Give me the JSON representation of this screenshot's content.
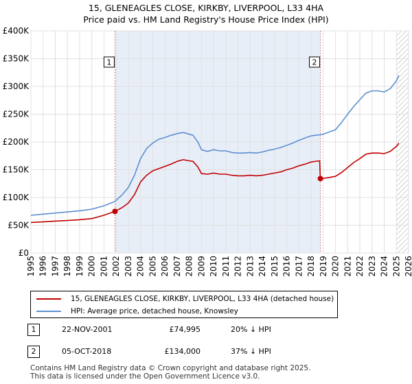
{
  "chart_data": {
    "type": "line",
    "title": "15, GLENEAGLES CLOSE, KIRKBY, LIVERPOOL, L33 4HA",
    "subtitle": "Price paid vs. HM Land Registry's House Price Index (HPI)",
    "xlabel": "",
    "ylabel": "",
    "xlim": [
      1995,
      2026
    ],
    "ylim": [
      0,
      400000
    ],
    "x_ticks": [
      "1995",
      "1996",
      "1997",
      "1998",
      "1999",
      "2000",
      "2001",
      "2002",
      "2003",
      "2004",
      "2005",
      "2006",
      "2007",
      "2008",
      "2009",
      "2010",
      "2011",
      "2012",
      "2013",
      "2014",
      "2015",
      "2016",
      "2017",
      "2018",
      "2019",
      "2020",
      "2021",
      "2022",
      "2023",
      "2024",
      "2025",
      "2026"
    ],
    "y_ticks": [
      {
        "value": 0,
        "label": "£0"
      },
      {
        "value": 50000,
        "label": "£50K"
      },
      {
        "value": 100000,
        "label": "£100K"
      },
      {
        "value": 150000,
        "label": "£150K"
      },
      {
        "value": 200000,
        "label": "£200K"
      },
      {
        "value": 250000,
        "label": "£250K"
      },
      {
        "value": 300000,
        "label": "£300K"
      },
      {
        "value": 350000,
        "label": "£350K"
      },
      {
        "value": 400000,
        "label": "£400K"
      }
    ],
    "grid": true,
    "shaded_period": [
      2001.9,
      2018.76
    ],
    "future_hatch_from": 2025.0,
    "series": [
      {
        "name": "HPI: Average price, detached house, Knowsley",
        "color": "#5b8fd0",
        "x": [
          1995,
          1996,
          1997,
          1998,
          1999,
          2000,
          2001,
          2001.9,
          2002.5,
          2003,
          2003.5,
          2004,
          2004.5,
          2005,
          2005.5,
          2006,
          2006.5,
          2007,
          2007.5,
          2008,
          2008.3,
          2008.7,
          2009,
          2009.5,
          2010,
          2010.5,
          2011,
          2011.5,
          2012,
          2012.5,
          2013,
          2013.5,
          2014,
          2014.5,
          2015,
          2015.5,
          2016,
          2016.5,
          2017,
          2017.5,
          2018,
          2018.76,
          2019,
          2019.5,
          2020,
          2020.5,
          2021,
          2021.5,
          2022,
          2022.5,
          2023,
          2023.5,
          2024,
          2024.5,
          2025,
          2025.2
        ],
        "values": [
          68000,
          70000,
          72000,
          74000,
          76000,
          79000,
          85000,
          93000,
          105000,
          118000,
          140000,
          170000,
          188000,
          198000,
          205000,
          208000,
          212000,
          215000,
          217000,
          214000,
          212000,
          200000,
          186000,
          183000,
          186000,
          184000,
          184000,
          181000,
          180000,
          180000,
          181000,
          180000,
          182000,
          185000,
          187000,
          190000,
          194000,
          198000,
          203000,
          207000,
          211000,
          213000,
          214000,
          218000,
          222000,
          235000,
          250000,
          264000,
          276000,
          288000,
          292000,
          292000,
          290000,
          296000,
          310000,
          320000
        ]
      },
      {
        "name": "15, GLENEAGLES CLOSE, KIRKBY, LIVERPOOL, L33 4HA (detached house)",
        "color": "#c00000",
        "x": [
          1995,
          1996,
          1997,
          1998,
          1999,
          2000,
          2001,
          2001.9,
          2002.5,
          2003,
          2003.5,
          2004,
          2004.5,
          2005,
          2005.5,
          2006,
          2006.5,
          2007,
          2007.5,
          2008,
          2008.3,
          2008.7,
          2009,
          2009.5,
          2010,
          2010.5,
          2011,
          2011.5,
          2012,
          2012.5,
          2013,
          2013.5,
          2014,
          2014.5,
          2015,
          2015.5,
          2016,
          2016.5,
          2017,
          2017.5,
          2018,
          2018.7,
          2018.76,
          2019,
          2019.5,
          2020,
          2020.5,
          2021,
          2021.5,
          2022,
          2022.5,
          2023,
          2023.5,
          2024,
          2024.5,
          2025,
          2025.2
        ],
        "values": [
          55000,
          56000,
          57500,
          58500,
          60000,
          62000,
          68000,
          74995,
          82000,
          90000,
          105000,
          128000,
          140000,
          148000,
          152000,
          156000,
          160000,
          165000,
          168000,
          166000,
          165000,
          155000,
          143000,
          142000,
          144000,
          142000,
          142000,
          140000,
          139000,
          139000,
          140000,
          139000,
          140000,
          142000,
          144000,
          146000,
          150000,
          153000,
          157000,
          160000,
          164000,
          166000,
          134000,
          134500,
          136000,
          138000,
          145000,
          154000,
          163000,
          170000,
          178000,
          180000,
          180000,
          179000,
          183000,
          192000,
          198000
        ]
      }
    ],
    "sales": [
      {
        "label": "1",
        "x": 2001.9,
        "value": 74995
      },
      {
        "label": "2",
        "x": 2018.76,
        "value": 134000
      }
    ]
  },
  "legend": {
    "property": "15, GLENEAGLES CLOSE, KIRKBY, LIVERPOOL, L33 4HA (detached house)",
    "hpi": "HPI: Average price, detached house, Knowsley"
  },
  "annotations": [
    {
      "num": "1",
      "date": "22-NOV-2001",
      "price": "£74,995",
      "hpi": "20% ↓ HPI"
    },
    {
      "num": "2",
      "date": "05-OCT-2018",
      "price": "£134,000",
      "hpi": "37% ↓ HPI"
    }
  ],
  "footer": {
    "line1": "Contains HM Land Registry data © Crown copyright and database right 2025.",
    "line2": "This data is licensed under the Open Government Licence v3.0."
  }
}
